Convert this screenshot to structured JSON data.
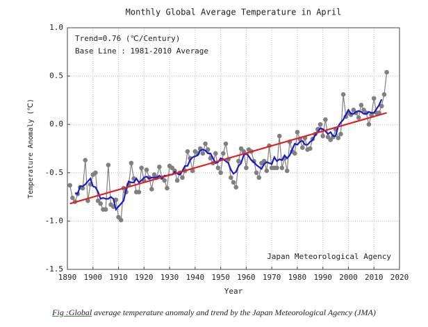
{
  "chart_data": {
    "type": "line",
    "title": "Monthly Global Average Temperature in April",
    "xlabel": "Year",
    "ylabel": "Temperature Anomaly (℃)",
    "annotations": [
      "Trend=0.76 (℃/Century)",
      "Base Line : 1981-2010 Average",
      "Japan Meteorological Agency"
    ],
    "caption": {
      "link": "Fig :Global",
      "text": " average temperature anomaly and trend by the Japan Meteorological Agency (JMA)"
    },
    "x": [
      1891,
      1892,
      1893,
      1894,
      1895,
      1896,
      1897,
      1898,
      1899,
      1900,
      1901,
      1902,
      1903,
      1904,
      1905,
      1906,
      1907,
      1908,
      1909,
      1910,
      1911,
      1912,
      1913,
      1914,
      1915,
      1916,
      1917,
      1918,
      1919,
      1920,
      1921,
      1922,
      1923,
      1924,
      1925,
      1926,
      1927,
      1928,
      1929,
      1930,
      1931,
      1932,
      1933,
      1934,
      1935,
      1936,
      1937,
      1938,
      1939,
      1940,
      1941,
      1942,
      1943,
      1944,
      1945,
      1946,
      1947,
      1948,
      1949,
      1950,
      1951,
      1952,
      1953,
      1954,
      1955,
      1956,
      1957,
      1958,
      1959,
      1960,
      1961,
      1962,
      1963,
      1964,
      1965,
      1966,
      1967,
      1968,
      1969,
      1970,
      1971,
      1972,
      1973,
      1974,
      1975,
      1976,
      1977,
      1978,
      1979,
      1980,
      1981,
      1982,
      1983,
      1984,
      1985,
      1986,
      1987,
      1988,
      1989,
      1990,
      1991,
      1992,
      1993,
      1994,
      1995,
      1996,
      1997,
      1998,
      1999,
      2000,
      2001,
      2002,
      2003,
      2004,
      2005,
      2006,
      2007,
      2008,
      2009,
      2010,
      2011,
      2012,
      2013,
      2014,
      2015
    ],
    "series": [
      {
        "color": "#808080",
        "markers": true,
        "values": [
          -0.63,
          -0.76,
          -0.8,
          -0.72,
          -0.65,
          -0.66,
          -0.37,
          -0.79,
          -0.62,
          -0.52,
          -0.5,
          -0.79,
          -0.82,
          -0.88,
          -0.88,
          -0.42,
          -0.83,
          -0.85,
          -0.78,
          -0.96,
          -0.99,
          -0.66,
          -0.7,
          -0.62,
          -0.4,
          -0.56,
          -0.7,
          -0.7,
          -0.45,
          -0.58,
          -0.47,
          -0.55,
          -0.67,
          -0.52,
          -0.55,
          -0.44,
          -0.55,
          -0.58,
          -0.66,
          -0.43,
          -0.45,
          -0.48,
          -0.58,
          -0.5,
          -0.55,
          -0.48,
          -0.28,
          -0.35,
          -0.48,
          -0.28,
          -0.3,
          -0.25,
          -0.3,
          -0.2,
          -0.26,
          -0.35,
          -0.4,
          -0.3,
          -0.45,
          -0.5,
          -0.3,
          -0.2,
          -0.36,
          -0.55,
          -0.6,
          -0.65,
          -0.38,
          -0.25,
          -0.28,
          -0.45,
          -0.26,
          -0.28,
          -0.38,
          -0.5,
          -0.55,
          -0.4,
          -0.38,
          -0.48,
          -0.22,
          -0.45,
          -0.45,
          -0.45,
          -0.12,
          -0.45,
          -0.35,
          -0.48,
          -0.18,
          -0.28,
          -0.3,
          -0.08,
          -0.15,
          -0.24,
          -0.14,
          -0.26,
          -0.25,
          -0.15,
          -0.1,
          -0.05,
          0.0,
          -0.12,
          0.05,
          -0.13,
          -0.16,
          -0.13,
          -0.05,
          -0.14,
          -0.1,
          0.31,
          0.08,
          0.12,
          0.1,
          0.15,
          0.12,
          0.07,
          0.2,
          0.15,
          0.12,
          0.0,
          0.1,
          0.27,
          0.12,
          0.12,
          0.19,
          0.31,
          0.54
        ]
      },
      {
        "color": "#1a1acc",
        "markers": false,
        "values": [
          null,
          null,
          -0.71,
          -0.72,
          -0.64,
          -0.64,
          -0.62,
          -0.59,
          -0.56,
          -0.64,
          -0.65,
          -0.7,
          -0.77,
          -0.76,
          -0.77,
          -0.77,
          -0.75,
          -0.77,
          -0.88,
          -0.85,
          -0.82,
          -0.79,
          -0.67,
          -0.59,
          -0.6,
          -0.6,
          -0.56,
          -0.6,
          -0.58,
          -0.55,
          -0.54,
          -0.56,
          -0.55,
          -0.55,
          -0.55,
          -0.53,
          -0.56,
          -0.53,
          -0.53,
          -0.52,
          -0.52,
          -0.49,
          -0.51,
          -0.52,
          -0.48,
          -0.43,
          -0.43,
          -0.37,
          -0.34,
          -0.33,
          -0.32,
          -0.27,
          -0.26,
          -0.27,
          -0.3,
          -0.3,
          -0.35,
          -0.4,
          -0.39,
          -0.35,
          -0.36,
          -0.38,
          -0.4,
          -0.47,
          -0.51,
          -0.49,
          -0.43,
          -0.4,
          -0.32,
          -0.3,
          -0.33,
          -0.37,
          -0.39,
          -0.42,
          -0.44,
          -0.46,
          -0.41,
          -0.39,
          -0.4,
          -0.41,
          -0.34,
          -0.38,
          -0.36,
          -0.37,
          -0.32,
          -0.35,
          -0.32,
          -0.26,
          -0.2,
          -0.21,
          -0.18,
          -0.17,
          -0.21,
          -0.21,
          -0.18,
          -0.16,
          -0.11,
          -0.08,
          -0.04,
          -0.05,
          -0.07,
          -0.1,
          -0.08,
          -0.12,
          -0.12,
          -0.02,
          0.02,
          0.05,
          0.1,
          0.15,
          0.11,
          0.11,
          0.13,
          0.14,
          0.13,
          0.11,
          0.11,
          0.13,
          0.12,
          0.12,
          0.16,
          0.2,
          0.26,
          null,
          null
        ]
      },
      {
        "color": "#e02020",
        "markers": false,
        "x": [
          1891,
          2015
        ],
        "values": [
          -0.82,
          0.12
        ]
      }
    ],
    "xlim": [
      1890,
      2020
    ],
    "xticks": [
      1890,
      1900,
      1910,
      1920,
      1930,
      1940,
      1950,
      1960,
      1970,
      1980,
      1990,
      2000,
      2010,
      2020
    ],
    "ylim": [
      -1.5,
      1.0
    ],
    "yticks": [
      {
        "value": -1.5,
        "label": "-1.5"
      },
      {
        "value": -1.0,
        "label": "-1.0"
      },
      -0.5,
      {
        "value": 0.0,
        "label": "0.0"
      },
      0.5,
      {
        "value": 1.0,
        "label": "1.0"
      }
    ],
    "grid": true
  }
}
